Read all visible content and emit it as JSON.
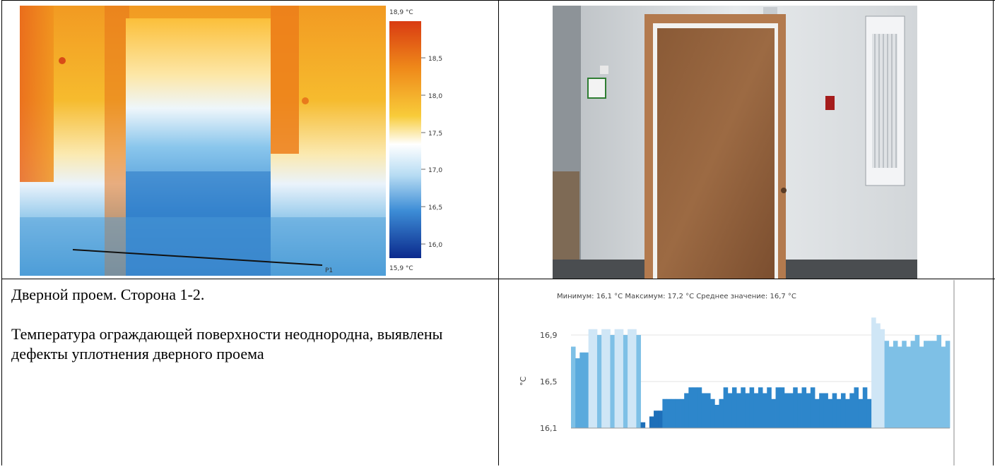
{
  "thermal": {
    "scale_max_label": "18,9 °C",
    "scale_min_label": "15,9 °C",
    "scale_ticks": [
      "18,5",
      "18,0",
      "17,5",
      "17,0",
      "16,5",
      "16,0"
    ],
    "profile_label": "P1",
    "colors": {
      "hot": "#e2571b",
      "warm": "#f4b526",
      "neutral": "#ffffff",
      "cool": "#6fb4e2",
      "cold": "#1d57b5"
    }
  },
  "caption": {
    "title": "Дверной проем. Сторона 1-2.",
    "body": "Температура ограждающей поверхности неоднородна, выявлены дефекты уплотнения дверного проема"
  },
  "chart_data": {
    "type": "bar",
    "title": "Минимум: 16,1 °C Максимум: 17,2 °C Среднее значение: 16,7 °C",
    "ylabel": "°C",
    "yticks": [
      "16,9",
      "16,5",
      "16,1"
    ],
    "ylim": [
      16.1,
      17.1
    ],
    "grid": true,
    "values": [
      16.8,
      16.7,
      16.75,
      16.75,
      16.95,
      16.95,
      16.9,
      16.95,
      16.95,
      16.9,
      16.95,
      16.95,
      16.9,
      16.95,
      16.95,
      16.9,
      16.15,
      16.1,
      16.2,
      16.25,
      16.25,
      16.35,
      16.35,
      16.35,
      16.35,
      16.35,
      16.4,
      16.45,
      16.45,
      16.45,
      16.4,
      16.4,
      16.35,
      16.3,
      16.35,
      16.45,
      16.4,
      16.45,
      16.4,
      16.45,
      16.4,
      16.45,
      16.4,
      16.45,
      16.4,
      16.45,
      16.35,
      16.45,
      16.45,
      16.4,
      16.4,
      16.45,
      16.4,
      16.45,
      16.4,
      16.45,
      16.35,
      16.4,
      16.4,
      16.35,
      16.4,
      16.35,
      16.4,
      16.35,
      16.4,
      16.45,
      16.35,
      16.45,
      16.35,
      17.05,
      17.0,
      16.95,
      16.85,
      16.8,
      16.85,
      16.8,
      16.85,
      16.8,
      16.85,
      16.9,
      16.8,
      16.85,
      16.85,
      16.85,
      16.9,
      16.8,
      16.85
    ]
  }
}
